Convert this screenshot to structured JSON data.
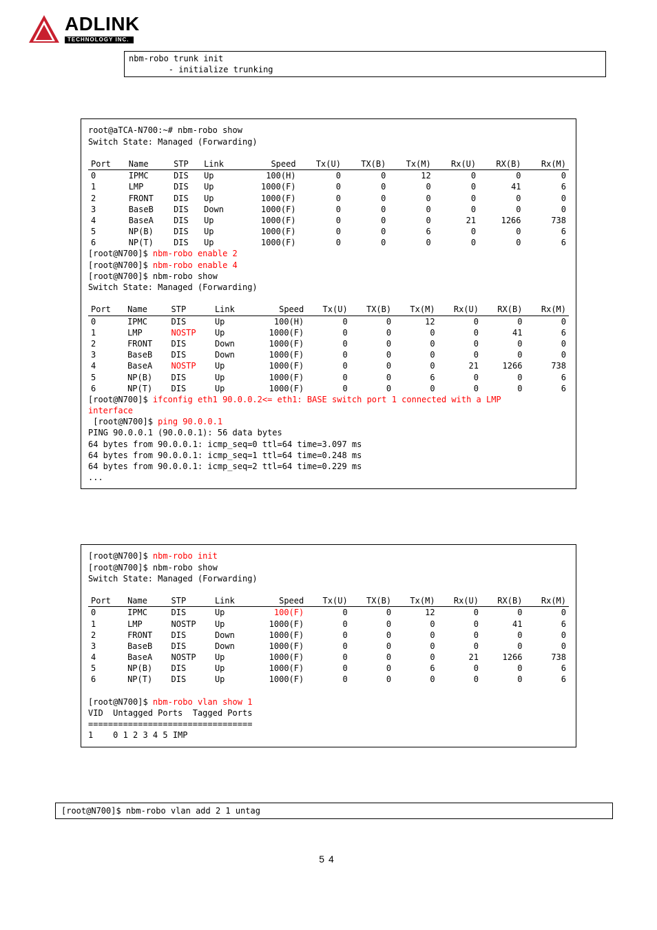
{
  "logo": {
    "name": "ADLINK",
    "sub": "TECHNOLOGY INC."
  },
  "box1": {
    "line1": "nbm-robo trunk init",
    "line2": "        - initialize trunking"
  },
  "term1": {
    "prompt1": "root@aTCA-N700:~# nbm-robo show",
    "switch": "Switch State: Managed (Forwarding)",
    "cols": [
      "Port",
      "Name",
      "STP",
      "Link",
      "Speed",
      "Tx(U)",
      "TX(B)",
      "Tx(M)",
      "Rx(U)",
      "RX(B)",
      "Rx(M)"
    ],
    "rows1": [
      [
        "0",
        "IPMC",
        "DIS",
        "Up",
        "100(H)",
        "0",
        "0",
        "12",
        "0",
        "0",
        "0"
      ],
      [
        "1",
        "LMP",
        "DIS",
        "Up",
        "1000(F)",
        "0",
        "0",
        "0",
        "0",
        "41",
        "6"
      ],
      [
        "2",
        "FRONT",
        "DIS",
        "Up",
        "1000(F)",
        "0",
        "0",
        "0",
        "0",
        "0",
        "0"
      ],
      [
        "3",
        "BaseB",
        "DIS",
        "Down",
        "1000(F)",
        "0",
        "0",
        "0",
        "0",
        "0",
        "0"
      ],
      [
        "4",
        "BaseA",
        "DIS",
        "Up",
        "1000(F)",
        "0",
        "0",
        "0",
        "21",
        "1266",
        "738"
      ],
      [
        "5",
        "NP(B)",
        "DIS",
        "Up",
        "1000(F)",
        "0",
        "0",
        "6",
        "0",
        "0",
        "6"
      ],
      [
        "6",
        "NP(T)",
        "DIS",
        "Up",
        "1000(F)",
        "0",
        "0",
        "0",
        "0",
        "0",
        "6"
      ]
    ],
    "enable2_p": "[root@N700]$ ",
    "enable2_c": "nbm-robo enable 2",
    "enable4_p": "[root@N700]$ ",
    "enable4_c": "nbm-robo enable 4",
    "show2_p": "[root@N700]$ nbm-robo show",
    "rows2": [
      [
        "0",
        "IPMC",
        "DIS",
        "Up",
        "100(H)",
        "0",
        "0",
        "12",
        "0",
        "0",
        "0"
      ],
      [
        "1",
        "LMP",
        "NOSTP",
        "Up",
        "1000(F)",
        "0",
        "0",
        "0",
        "0",
        "41",
        "6",
        "red2"
      ],
      [
        "2",
        "FRONT",
        "DIS",
        "Down",
        "1000(F)",
        "0",
        "0",
        "0",
        "0",
        "0",
        "0"
      ],
      [
        "3",
        "BaseB",
        "DIS",
        "Down",
        "1000(F)",
        "0",
        "0",
        "0",
        "0",
        "0",
        "0"
      ],
      [
        "4",
        "BaseA",
        "NOSTP",
        "Up",
        "1000(F)",
        "0",
        "0",
        "0",
        "21",
        "1266",
        "738",
        "red2"
      ],
      [
        "5",
        "NP(B)",
        "DIS",
        "Up",
        "1000(F)",
        "0",
        "0",
        "6",
        "0",
        "0",
        "6"
      ],
      [
        "6",
        "NP(T)",
        "DIS",
        "Up",
        "1000(F)",
        "0",
        "0",
        "0",
        "0",
        "0",
        "6"
      ]
    ],
    "ifcfg_p": "[root@N700]$ ",
    "ifcfg_c": "ifconfig eth1 90.0.0.2<= eth1: BASE switch port 1 connected with a LMP",
    "iface": "interface",
    "ping_p": " [root@N700]$ ",
    "ping_c": "ping 90.0.0.1",
    "ping_l1": "PING 90.0.0.1 (90.0.0.1): 56 data bytes",
    "ping_l2": "64 bytes from 90.0.0.1: icmp_seq=0 ttl=64 time=3.097 ms",
    "ping_l3": "64 bytes from 90.0.0.1: icmp_seq=1 ttl=64 time=0.248 ms",
    "ping_l4": "64 bytes from 90.0.0.1: icmp_seq=2 ttl=64 time=0.229 ms",
    "dots": "..."
  },
  "term2": {
    "init_p": "[root@N700]$ ",
    "init_c": "nbm-robo init",
    "show_p": "[root@N700]$ nbm-robo show",
    "switch": "Switch State: Managed (Forwarding)",
    "cols": [
      "Port",
      "Name",
      "STP",
      "Link",
      "Speed",
      "Tx(U)",
      "TX(B)",
      "Tx(M)",
      "Rx(U)",
      "RX(B)",
      "Rx(M)"
    ],
    "rows": [
      [
        "0",
        "IPMC",
        "DIS",
        "Up",
        "100(F)",
        "0",
        "0",
        "12",
        "0",
        "0",
        "0",
        "red4"
      ],
      [
        "1",
        "LMP",
        "NOSTP",
        "Up",
        "1000(F)",
        "0",
        "0",
        "0",
        "0",
        "41",
        "6"
      ],
      [
        "2",
        "FRONT",
        "DIS",
        "Down",
        "1000(F)",
        "0",
        "0",
        "0",
        "0",
        "0",
        "0"
      ],
      [
        "3",
        "BaseB",
        "DIS",
        "Down",
        "1000(F)",
        "0",
        "0",
        "0",
        "0",
        "0",
        "0"
      ],
      [
        "4",
        "BaseA",
        "NOSTP",
        "Up",
        "1000(F)",
        "0",
        "0",
        "0",
        "21",
        "1266",
        "738"
      ],
      [
        "5",
        "NP(B)",
        "DIS",
        "Up",
        "1000(F)",
        "0",
        "0",
        "6",
        "0",
        "0",
        "6"
      ],
      [
        "6",
        "NP(T)",
        "DIS",
        "Up",
        "1000(F)",
        "0",
        "0",
        "0",
        "0",
        "0",
        "6"
      ]
    ],
    "vlan_p": "[root@N700]$ ",
    "vlan_c": "nbm-robo vlan show 1",
    "vlan_h": "VID  Untagged Ports  Tagged Ports",
    "vlan_sep": "=================================",
    "vlan_r": "1    0 1 2 3 4 5 IMP"
  },
  "cmdbox": "[root@N700]$ nbm-robo vlan add 2 1 untag",
  "page": "54"
}
